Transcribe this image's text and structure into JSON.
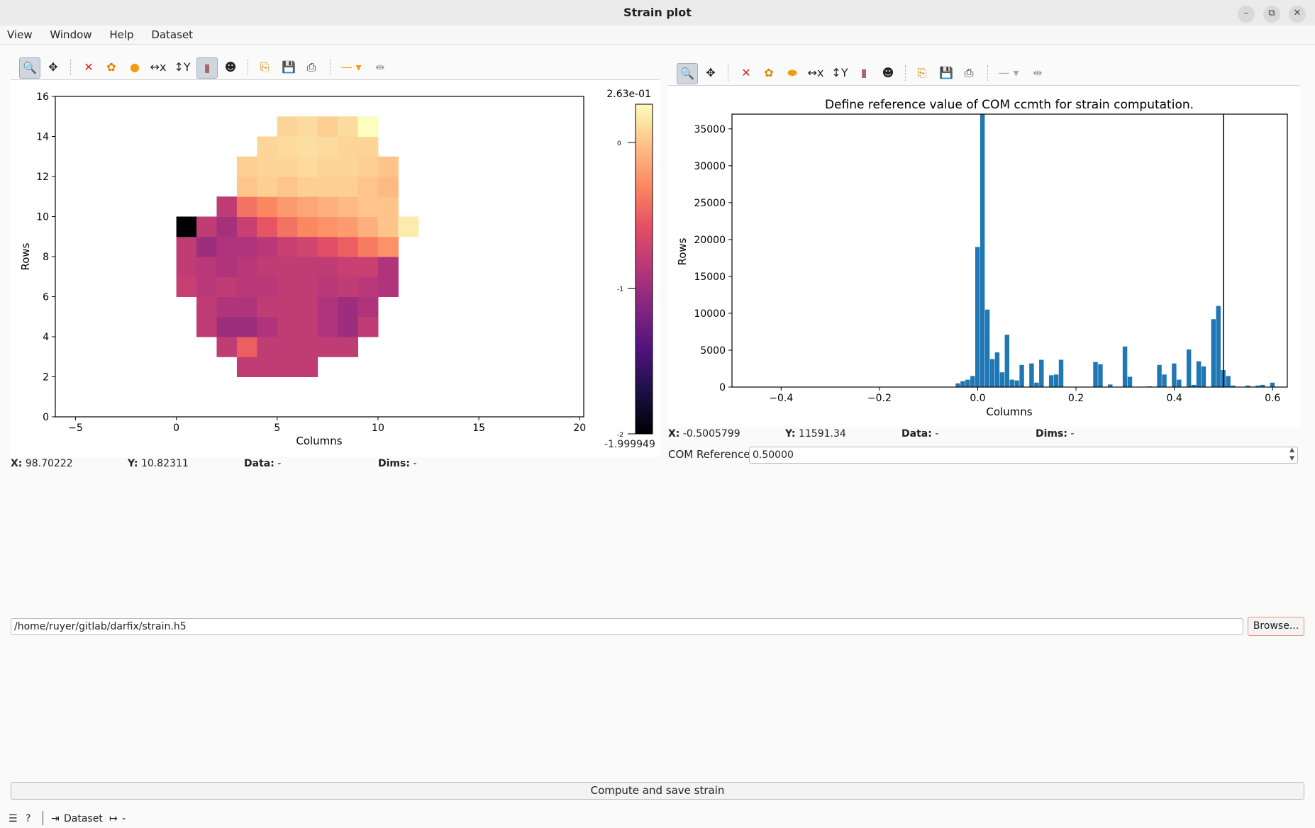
{
  "window": {
    "title": "Strain plot"
  },
  "menu": [
    "View",
    "Window",
    "Help",
    "Dataset"
  ],
  "left_plot": {
    "xlabel": "Columns",
    "ylabel": "Rows",
    "x_ticks": [
      "-5",
      "0",
      "5",
      "10",
      "15",
      "20"
    ],
    "y_ticks": [
      "0",
      "2",
      "4",
      "6",
      "8",
      "10",
      "12",
      "14",
      "16"
    ],
    "colorbar": {
      "max_label": "2.63e-01",
      "min_label": "-1.999949",
      "ticks": [
        "0",
        "-1",
        "-2"
      ],
      "colormap": "magma"
    },
    "position": {
      "x_label": "X:",
      "x_value": "98.70222",
      "y_label": "Y:",
      "y_value": "10.82311",
      "data_label": "Data:",
      "data_value": "-",
      "dims_label": "Dims:",
      "dims_value": "-"
    }
  },
  "right_plot": {
    "title": "Define reference value of COM ccmth for strain computation.",
    "xlabel": "Columns",
    "ylabel": "Rows",
    "x_ticks": [
      "-0.4",
      "-0.2",
      "0.0",
      "0.2",
      "0.4",
      "0.6"
    ],
    "y_ticks": [
      "0",
      "5000",
      "10000",
      "15000",
      "20000",
      "25000",
      "30000",
      "35000"
    ],
    "position": {
      "x_label": "X:",
      "x_value": "-0.5005799",
      "y_label": "Y:",
      "y_value": "11591.34",
      "data_label": "Data:",
      "data_value": "-",
      "dims_label": "Dims:",
      "dims_value": "-"
    }
  },
  "com_reference": {
    "label": "COM Reference",
    "value": "0.50000"
  },
  "output": {
    "path": "/home/ruyer/gitlab/darfix/strain.h5",
    "browse_label": "Browse..."
  },
  "compute_label": "Compute and save strain",
  "statusbar": {
    "dataset_label": "Dataset",
    "dataset_value": "-"
  },
  "chart_data": [
    {
      "type": "heatmap",
      "title": "",
      "xlabel": "Columns",
      "ylabel": "Rows",
      "xlim": [
        -6,
        20.2
      ],
      "ylim": [
        0,
        16
      ],
      "colormap": "magma",
      "vmin": -1.999949,
      "vmax": 0.263,
      "rows_from_bottom": [
        [
          null,
          null,
          null,
          -0.8,
          -0.8,
          -0.8,
          -0.8,
          null,
          null,
          null,
          null,
          null
        ],
        [
          null,
          null,
          -0.8,
          -0.5,
          -0.8,
          -0.8,
          -0.8,
          -0.8,
          -0.8,
          null,
          null,
          null
        ],
        [
          null,
          -0.8,
          -1.0,
          -1.0,
          -0.9,
          -0.8,
          -0.8,
          -0.9,
          -1.0,
          -0.8,
          null,
          null
        ],
        [
          null,
          -0.8,
          -0.9,
          -0.9,
          -0.8,
          -0.8,
          -0.8,
          -0.9,
          -1.0,
          -0.9,
          null,
          null
        ],
        [
          -0.75,
          -0.85,
          -0.8,
          -0.85,
          -0.85,
          -0.8,
          -0.8,
          -0.85,
          -0.8,
          -0.85,
          -0.9,
          null
        ],
        [
          -0.8,
          -0.85,
          -0.9,
          -0.85,
          -0.8,
          -0.8,
          -0.8,
          -0.8,
          -0.75,
          -0.75,
          -0.9,
          null
        ],
        [
          -0.8,
          -1.0,
          -0.9,
          -0.9,
          -0.85,
          -0.75,
          -0.7,
          -0.6,
          -0.5,
          -0.35,
          -0.25,
          null
        ],
        [
          -2.0,
          -0.8,
          -0.95,
          -0.75,
          -0.55,
          -0.4,
          -0.3,
          -0.25,
          -0.2,
          -0.1,
          0.0,
          0.18
        ],
        [
          null,
          null,
          -0.8,
          -0.4,
          -0.3,
          -0.2,
          -0.15,
          -0.1,
          -0.05,
          0.0,
          0.0,
          null
        ],
        [
          null,
          null,
          null,
          0.0,
          0.05,
          0.0,
          0.05,
          0.05,
          0.05,
          0.0,
          -0.05,
          null
        ],
        [
          null,
          null,
          null,
          0.05,
          0.08,
          0.08,
          0.1,
          0.08,
          0.08,
          0.05,
          0.0,
          null
        ],
        [
          null,
          null,
          null,
          null,
          0.08,
          0.1,
          0.12,
          0.1,
          0.08,
          0.08,
          null,
          null
        ],
        [
          null,
          null,
          null,
          null,
          null,
          0.08,
          0.1,
          0.05,
          0.1,
          0.263,
          null,
          null
        ]
      ],
      "row_y_start": 2,
      "col_x_start": 0
    },
    {
      "type": "bar",
      "title": "Define reference value of COM ccmth for strain computation.",
      "xlabel": "Columns",
      "ylabel": "Rows",
      "xlim": [
        -0.5,
        0.63
      ],
      "ylim": [
        0,
        37000
      ],
      "bin_width": 0.01,
      "reference_line_x": 0.5,
      "x": [
        -0.04,
        -0.03,
        -0.02,
        -0.01,
        0.0,
        0.01,
        0.02,
        0.03,
        0.04,
        0.05,
        0.06,
        0.07,
        0.08,
        0.09,
        0.11,
        0.12,
        0.13,
        0.15,
        0.16,
        0.17,
        0.24,
        0.25,
        0.27,
        0.3,
        0.31,
        0.35,
        0.37,
        0.38,
        0.4,
        0.41,
        0.43,
        0.44,
        0.45,
        0.46,
        0.48,
        0.49,
        0.5,
        0.51,
        0.52,
        0.55,
        0.57,
        0.58,
        0.6
      ],
      "values": [
        500,
        800,
        1000,
        1500,
        19000,
        37000,
        10500,
        3800,
        4700,
        2000,
        7100,
        1000,
        900,
        3000,
        3200,
        600,
        3700,
        1600,
        1700,
        3700,
        3400,
        3100,
        350,
        5500,
        1400,
        100,
        3000,
        1700,
        3200,
        1000,
        5100,
        300,
        3500,
        2800,
        9200,
        11000,
        2300,
        1500,
        200,
        200,
        200,
        300,
        600
      ]
    }
  ]
}
